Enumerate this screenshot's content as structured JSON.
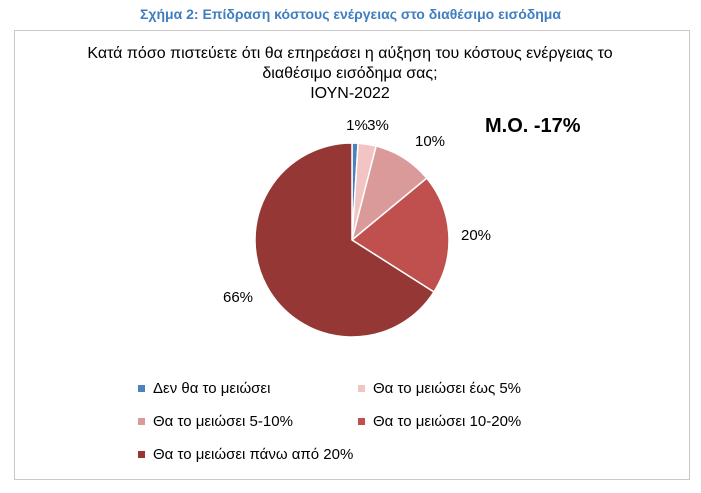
{
  "caption": "Σχήμα 2: Επίδραση κόστους ενέργειας στο διαθέσιμο εισόδημα",
  "mean_label": "Μ.Ο. -17%",
  "chart_data": {
    "type": "pie",
    "title_lines": [
      "Κατά πόσο πιστεύετε ότι θα επηρεάσει η αύξηση του κόστους ενέργειας το",
      "διαθέσιμο εισόδημα σας;",
      "ΙΟΥΝ-2022"
    ],
    "slices": [
      {
        "name": "Δεν θα το μειώσει",
        "value": 1,
        "label": "1%",
        "color": "#4f81bd"
      },
      {
        "name": "Θα το μειώσει έως 5%",
        "value": 3,
        "label": "3%",
        "color": "#f2c4c4"
      },
      {
        "name": "Θα το μειώσει 5-10%",
        "value": 10,
        "label": "10%",
        "color": "#db9a9a"
      },
      {
        "name": "Θα το μειώσει 10-20%",
        "value": 20,
        "label": "20%",
        "color": "#c0504d"
      },
      {
        "name": "Θα το μειώσει πάνω από 20%",
        "value": 66,
        "label": "66%",
        "color": "#953735"
      }
    ],
    "legend_placement": "bottom"
  }
}
